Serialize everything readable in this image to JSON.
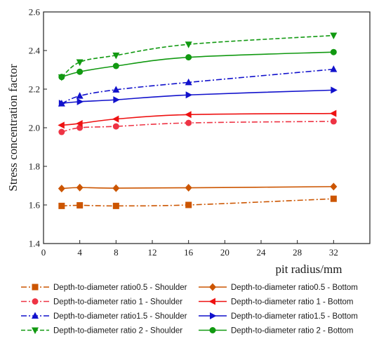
{
  "chart_data": {
    "type": "line",
    "xlabel": "pit radius/mm",
    "ylabel": "Stress concentration factor",
    "xlim": [
      0,
      36
    ],
    "ylim": [
      1.4,
      2.6
    ],
    "xticks": [
      "0",
      "4",
      "8",
      "12",
      "16",
      "20",
      "24",
      "28",
      "32"
    ],
    "yticks": [
      "1.4",
      "1.6",
      "1.8",
      "2.0",
      "2.2",
      "2.4",
      "2.6"
    ],
    "grid": false,
    "legend_position": "bottom",
    "x": [
      2,
      4,
      8,
      16,
      32
    ],
    "series": [
      {
        "name": "Depth-to-diameter ratio0.5 - Shoulder",
        "color": "#cc5500",
        "dash": "dashdot",
        "marker": "square",
        "values": [
          1.595,
          1.598,
          1.595,
          1.6,
          1.632
        ]
      },
      {
        "name": "Depth-to-diameter ratio0.5 - Bottom",
        "color": "#cc5500",
        "dash": "solid",
        "marker": "diamond",
        "values": [
          1.685,
          1.69,
          1.687,
          1.689,
          1.695
        ]
      },
      {
        "name": "Depth-to-diameter ratio  1  - Shoulder",
        "color": "#ee3344",
        "dash": "dashdot",
        "marker": "circle",
        "values": [
          1.978,
          2.0,
          2.007,
          2.025,
          2.033
        ]
      },
      {
        "name": "Depth-to-diameter ratio  1  - Bottom",
        "color": "#ee1111",
        "dash": "solid",
        "marker": "triangle-left",
        "values": [
          2.013,
          2.022,
          2.045,
          2.068,
          2.074
        ]
      },
      {
        "name": "Depth-to-diameter ratio1.5 - Shoulder",
        "color": "#1111cc",
        "dash": "dashdot",
        "marker": "triangle-up",
        "values": [
          2.125,
          2.165,
          2.197,
          2.235,
          2.303
        ]
      },
      {
        "name": "Depth-to-diameter ratio1.5 - Bottom",
        "color": "#1111cc",
        "dash": "solid",
        "marker": "triangle-right",
        "values": [
          2.127,
          2.135,
          2.145,
          2.17,
          2.195
        ]
      },
      {
        "name": "Depth-to-diameter ratio  2  - Shoulder",
        "color": "#119911",
        "dash": "dashed",
        "marker": "triangle-down",
        "values": [
          2.262,
          2.34,
          2.375,
          2.432,
          2.478
        ]
      },
      {
        "name": "Depth-to-diameter ratio  2  - Bottom",
        "color": "#119911",
        "dash": "solid",
        "marker": "circle",
        "values": [
          2.263,
          2.29,
          2.32,
          2.365,
          2.392
        ]
      }
    ]
  }
}
